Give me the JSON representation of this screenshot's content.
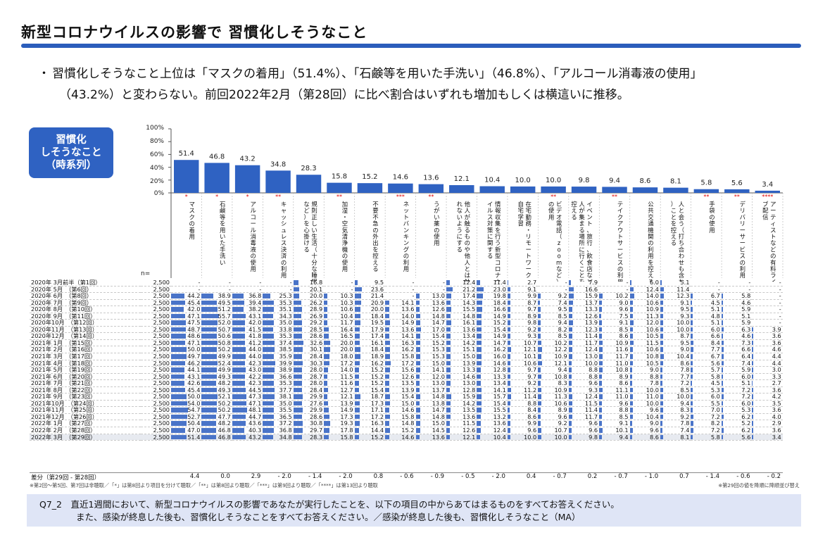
{
  "header": {
    "title": "新型コロナウイルスの影響で 習慣化しそうなこと",
    "bullet_line1": "習慣化しそうなこと上位は「マスクの着用」（51.4%）、「石鹸等を用いた手洗い」（46.8%）、「アルコール消毒液の使用」",
    "bullet_line2": "（43.2%）と変わらない。前回2022年2月（第28回）に比べ割合はいずれも増加もしくは横這いに推移。"
  },
  "badge": {
    "line1": "習慣化",
    "line2": "しそうなこと",
    "line3": "（時系列）"
  },
  "y_ticks": [
    "100%",
    "80%",
    "60%",
    "40%",
    "20%",
    "0%"
  ],
  "n_label": "n=",
  "colors": {
    "bar": "#2f62c2",
    "accent": "#2b5dbb",
    "mark": "#e00000"
  },
  "chart_data": {
    "type": "bar",
    "ylim": [
      0,
      100
    ],
    "categories": [
      "マスクの着用",
      "石鹸等を用いた手洗い",
      "アルコール消毒液の使用",
      "キャッシュレス決済の利用",
      "規則正しい生活（十分な睡眠など）を心掛ける",
      "加湿・空気清浄機の使用",
      "不要不急の外出を控える",
      "ネットバンキングの利用",
      "うがい薬の使用",
      "他人が触るものや他人とは触れないようにする",
      "情報収集を行う新型コロナウイルス対策に関する",
      "在宅勤務・リモートワーク、自宅学習",
      "ビデオ電話（zoomなど）の使用",
      "イベント、旅行、飲食店など人が集まる場所に行くことを控える",
      "テイクアウトサービスの利用",
      "公共交通機関の利用を控える",
      "人と会う（打ち合わせも含む）ことを控える",
      "手袋の使用",
      "デリバリーサービスの利用",
      "アーティストなどの有料ライブ配信"
    ],
    "marks": [
      "*",
      "*",
      "*",
      "**",
      "",
      "**",
      "",
      "***",
      "**",
      "",
      "",
      "",
      "**",
      "",
      "**",
      "",
      "",
      "**",
      "**",
      "****"
    ],
    "values": [
      51.4,
      46.8,
      43.2,
      34.8,
      28.3,
      15.8,
      15.2,
      14.6,
      13.6,
      12.1,
      10.4,
      10.0,
      10.0,
      9.8,
      9.4,
      8.6,
      8.1,
      5.8,
      5.6,
      3.4
    ]
  },
  "table": {
    "rows": [
      {
        "label": "2020年 3月前半（第1回）",
        "n": "2,500",
        "v": [
          "-",
          "-",
          "-",
          "-",
          "16.8",
          "-",
          "9.5",
          "-",
          "-",
          "12.4",
          "11.4",
          "2.7",
          "-",
          "7.9",
          "-",
          "6.0",
          "5.1",
          "-",
          "-",
          "-"
        ]
      },
      {
        "label": "2020年 5月　（第6回）",
        "n": "2,500",
        "v": [
          "-",
          "-",
          "-",
          "-",
          "20.1",
          "-",
          "23.6",
          "-",
          "-",
          "21.2",
          "23.0",
          "9.1",
          "-",
          "16.6",
          "-",
          "12.4",
          "11.4",
          "-",
          "-",
          "-"
        ]
      },
      {
        "label": "2020年 6月　（第8回）",
        "n": "2,500",
        "v": [
          "44.2",
          "38.9",
          "36.8",
          "25.3",
          "20.0",
          "10.3",
          "21.4",
          "-",
          "13.0",
          "17.4",
          "19.8",
          "9.9",
          "9.2",
          "15.9",
          "10.2",
          "14.0",
          "12.3",
          "6.7",
          "5.8",
          "-"
        ]
      },
      {
        "label": "2020年 7月　（第9回）",
        "n": "2,500",
        "v": [
          "45.4",
          "49.5",
          "39.4",
          "35.3",
          "26.2",
          "10.3",
          "20.9",
          "14.1",
          "13.6",
          "14.3",
          "18.4",
          "8.7",
          "7.4",
          "13.7",
          "9.0",
          "10.6",
          "9.1",
          "4.5",
          "4.6",
          "-"
        ]
      },
      {
        "label": "2020年 8月　（第10回）",
        "n": "2,500",
        "v": [
          "42.0",
          "51.2",
          "38.2",
          "35.1",
          "28.9",
          "10.6",
          "20.0",
          "13.6",
          "12.6",
          "15.5",
          "16.6",
          "9.7",
          "9.5",
          "13.3",
          "9.6",
          "10.9",
          "9.5",
          "5.1",
          "5.9",
          "-"
        ]
      },
      {
        "label": "2020年 9月　（第11回）",
        "n": "2,500",
        "v": [
          "47.1",
          "55.7",
          "43.1",
          "34.3",
          "26.9",
          "10.4",
          "18.4",
          "14.0",
          "14.8",
          "14.8",
          "14.9",
          "8.9",
          "8.5",
          "12.6",
          "7.5",
          "11.3",
          "9.3",
          "4.8",
          "5.1",
          "-"
        ]
      },
      {
        "label": "2020年10月　（第12回）",
        "n": "2,500",
        "v": [
          "47.5",
          "52.0",
          "42.0",
          "35.0",
          "29.2",
          "11.7",
          "19.5",
          "14.9",
          "14.7",
          "16.1",
          "15.2",
          "9.8",
          "9.4",
          "13.9",
          "9.1",
          "12.0",
          "10.0",
          "5.1",
          "5.9",
          "-"
        ]
      },
      {
        "label": "2020年11月　（第13回）",
        "n": "2,500",
        "v": [
          "48.7",
          "50.7",
          "41.5",
          "33.8",
          "28.5",
          "16.4",
          "17.9",
          "13.6",
          "17.0",
          "13.6",
          "15.4",
          "9.2",
          "8.2",
          "12.3",
          "8.5",
          "10.6",
          "10.0",
          "6.0",
          "6.3",
          "3.9"
        ]
      },
      {
        "label": "2020年12月　（第14回）",
        "n": "2,500",
        "v": [
          "48.6",
          "50.6",
          "41.8",
          "35.3",
          "28.6",
          "16.5",
          "17.4",
          "14.1",
          "15.4",
          "13.4",
          "14.9",
          "9.3",
          "8.5",
          "11.4",
          "8.6",
          "10.5",
          "8.7",
          "6.6",
          "4.6",
          "3.6"
        ]
      },
      {
        "label": "2021年 1月　（第15回）",
        "n": "2,500",
        "v": [
          "47.1",
          "50.8",
          "41.2",
          "37.4",
          "32.6",
          "20.0",
          "16.1",
          "16.3",
          "15.2",
          "14.2",
          "14.7",
          "10.7",
          "10.2",
          "11.7",
          "10.9",
          "11.5",
          "9.5",
          "8.4",
          "7.3",
          "3.6"
        ]
      },
      {
        "label": "2021年 2月　（第16回）",
        "n": "2,500",
        "v": [
          "50.0",
          "50.2",
          "44.0",
          "38.5",
          "30.1",
          "20.0",
          "18.4",
          "16.2",
          "15.3",
          "15.1",
          "16.2",
          "12.1",
          "12.2",
          "12.4",
          "11.6",
          "10.6",
          "9.0",
          "7.7",
          "6.6",
          "4.6"
        ]
      },
      {
        "label": "2021年 3月　（第17回）",
        "n": "2,500",
        "v": [
          "49.7",
          "49.9",
          "44.0",
          "35.9",
          "28.4",
          "18.0",
          "18.9",
          "15.8",
          "15.3",
          "15.0",
          "16.0",
          "10.1",
          "10.9",
          "13.0",
          "11.7",
          "10.8",
          "10.4",
          "6.7",
          "6.4",
          "4.4"
        ]
      },
      {
        "label": "2021年 4月　（第18回）",
        "n": "2,500",
        "v": [
          "46.2",
          "52.4",
          "42.3",
          "39.9",
          "30.3",
          "17.2",
          "16.2",
          "17.2",
          "15.0",
          "13.9",
          "14.6",
          "10.6",
          "12.1",
          "10.0",
          "11.0",
          "10.5",
          "8.6",
          "5.6",
          "7.4",
          "4.4"
        ]
      },
      {
        "label": "2021年 5月　（第19回）",
        "n": "2,500",
        "v": [
          "44.1",
          "49.9",
          "43.0",
          "38.9",
          "28.0",
          "14.0",
          "15.2",
          "15.6",
          "14.1",
          "13.3",
          "12.8",
          "9.7",
          "9.4",
          "8.8",
          "10.8",
          "9.0",
          "7.8",
          "5.7",
          "5.9",
          "3.0"
        ]
      },
      {
        "label": "2021年 6月　（第20回）",
        "n": "2,500",
        "v": [
          "43.1",
          "49.3",
          "42.2",
          "36.6",
          "28.7",
          "11.5",
          "15.2",
          "12.6",
          "12.0",
          "14.6",
          "13.3",
          "9.7",
          "10.8",
          "8.8",
          "8.9",
          "8.8",
          "7.7",
          "5.8",
          "6.0",
          "3.3"
        ]
      },
      {
        "label": "2021年 7月　（第21回）",
        "n": "2,500",
        "v": [
          "42.6",
          "48.2",
          "42.3",
          "35.3",
          "28.0",
          "11.6",
          "15.2",
          "13.5",
          "13.0",
          "13.0",
          "13.4",
          "9.2",
          "8.3",
          "9.6",
          "8.6",
          "7.8",
          "7.2",
          "4.5",
          "5.1",
          "2.7"
        ]
      },
      {
        "label": "2021年 8月　（第22回）",
        "n": "2,500",
        "v": [
          "45.4",
          "49.3",
          "44.5",
          "37.7",
          "28.4",
          "12.7",
          "15.4",
          "13.9",
          "13.7",
          "12.8",
          "14.1",
          "11.2",
          "10.9",
          "9.3",
          "11.1",
          "10.0",
          "8.5",
          "5.3",
          "7.2",
          "3.6"
        ]
      },
      {
        "label": "2021年 9月　（第23回）",
        "n": "2,500",
        "v": [
          "50.0",
          "52.1",
          "47.3",
          "38.1",
          "29.9",
          "12.1",
          "18.7",
          "15.4",
          "14.8",
          "15.9",
          "15.7",
          "11.4",
          "11.3",
          "12.4",
          "11.0",
          "11.0",
          "10.0",
          "6.0",
          "7.2",
          "4.2"
        ]
      },
      {
        "label": "2021年10月　（第24回）",
        "n": "2,500",
        "v": [
          "54.0",
          "50.2",
          "47.1",
          "35.0",
          "27.6",
          "13.9",
          "17.3",
          "15.0",
          "13.8",
          "14.2",
          "15.4",
          "8.8",
          "10.6",
          "11.5",
          "9.6",
          "10.0",
          "9.4",
          "5.5",
          "6.0",
          "3.5"
        ]
      },
      {
        "label": "2021年11月　（第25回）",
        "n": "2,500",
        "v": [
          "54.7",
          "50.2",
          "48.1",
          "35.5",
          "29.9",
          "14.9",
          "17.1",
          "14.6",
          "14.7",
          "13.5",
          "15.5",
          "8.4",
          "8.9",
          "11.4",
          "8.8",
          "9.6",
          "8.3",
          "7.0",
          "5.3",
          "3.6"
        ]
      },
      {
        "label": "2021年12月　（第26回）",
        "n": "2,500",
        "v": [
          "52.7",
          "47.7",
          "44.7",
          "36.5",
          "28.6",
          "17.3",
          "17.2",
          "15.8",
          "14.8",
          "13.6",
          "13.2",
          "8.6",
          "9.6",
          "11.7",
          "8.5",
          "10.4",
          "9.2",
          "7.2",
          "6.2",
          "4.0"
        ]
      },
      {
        "label": "2022年 1月　（第27回）",
        "n": "2,500",
        "v": [
          "50.4",
          "48.2",
          "43.6",
          "37.2",
          "30.8",
          "19.3",
          "16.3",
          "14.8",
          "15.0",
          "11.5",
          "13.6",
          "9.9",
          "9.2",
          "9.6",
          "9.1",
          "9.0",
          "7.8",
          "8.2",
          "5.2",
          "2.9"
        ]
      },
      {
        "label": "2022年 2月　（第28回）",
        "n": "2,500",
        "v": [
          "47.0",
          "46.8",
          "40.3",
          "36.8",
          "29.7",
          "17.8",
          "14.4",
          "15.2",
          "14.5",
          "12.6",
          "12.4",
          "9.6",
          "10.7",
          "9.6",
          "10.1",
          "9.6",
          "7.4",
          "7.2",
          "6.2",
          "3.6"
        ]
      },
      {
        "label": "2022年 3月　（第29回）",
        "n": "2,500",
        "v": [
          "51.4",
          "46.8",
          "43.2",
          "34.8",
          "28.3",
          "15.8",
          "15.2",
          "14.6",
          "13.6",
          "12.1",
          "10.4",
          "10.0",
          "10.0",
          "9.8",
          "9.4",
          "8.6",
          "8.1",
          "5.8",
          "5.6",
          "3.4"
        ]
      }
    ],
    "diff_label": "差分（第29回 - 第28回）",
    "diff": [
      "4.4",
      "0.0",
      "2.9",
      "- 2.0",
      "- 1.4",
      "- 2.0",
      "0.8",
      "- 0.6",
      "- 0.9",
      "- 0.5",
      "- 2.0",
      "0.4",
      "- 0.7",
      "0.2",
      "- 0.7",
      "- 1.0",
      "0.7",
      "- 1.4",
      "- 0.6",
      "- 0.2"
    ]
  },
  "notes": {
    "left": "※第2回〜第5回、第7回は非聴取／「*」は第8回より項目を分けて聴取／「**」は第8回より聴取／「***」は第9回より聴取／「****」は第13回より聴取",
    "right": "※第29回の値を降順に降順並び替え"
  },
  "question": {
    "line1": "Q7_2　直近1週間において、新型コロナウイルスの影響であなたが実行したことを、以下の項目の中からあてはまるものをすべてお答えください。",
    "line2": "また、感染が終息した後も、習慣化しそうなことをすべてお答えください。／感染が終息した後も、習慣化しそうなこと（MA）"
  }
}
